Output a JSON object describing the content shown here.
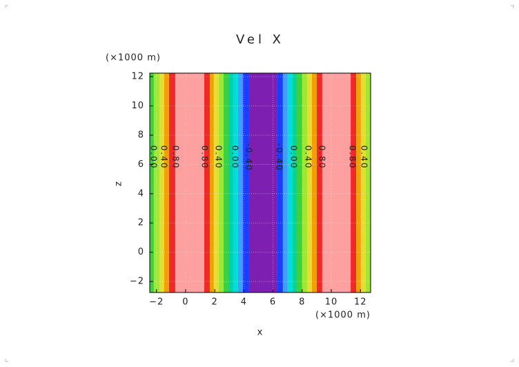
{
  "chart_data": {
    "type": "contour",
    "title": "Vel X",
    "x_label": "x",
    "y_label": "z",
    "x_unit": "(×1000 m)",
    "y_unit": "(×1000 m)",
    "xlim": [
      -2.46,
      12.7
    ],
    "ylim": [
      -2.75,
      12.24
    ],
    "xticks": [
      {
        "value": -2,
        "label": "−2"
      },
      0,
      2,
      4,
      6,
      8,
      10,
      12
    ],
    "yticks": [
      {
        "value": -2,
        "label": "−2"
      },
      0,
      2,
      4,
      6,
      8,
      10,
      12
    ],
    "grid": true,
    "bands": {
      "edges": [
        -2.46,
        -2.18,
        -1.8,
        -1.47,
        -1.14,
        -0.71,
        1.28,
        1.66,
        1.94,
        2.27,
        2.61,
        2.94,
        3.27,
        3.6,
        3.93,
        4.36,
        6.26,
        6.68,
        7.01,
        7.35,
        7.63,
        8.01,
        8.34,
        8.67,
        9.0,
        9.38,
        11.33,
        11.71,
        12.04,
        12.37,
        12.7
      ],
      "colors": [
        "#3cd23c",
        "#a0e632",
        "#e6dc32",
        "#f0a000",
        "#f02828",
        "#ffa0a0",
        "#f02828",
        "#f0a000",
        "#e6dc32",
        "#a0e632",
        "#3cd23c",
        "#00d2a0",
        "#00dcdc",
        "#3ca0ff",
        "#1e3cff",
        "#7d1fb0",
        "#1e3cff",
        "#3ca0ff",
        "#00dcdc",
        "#00d2a0",
        "#3cd23c",
        "#a0e632",
        "#e6dc32",
        "#f0a000",
        "#f02828",
        "#ffa0a0",
        "#f02828",
        "#f0a000",
        "#e6dc32",
        "#a0e632"
      ]
    },
    "contour_labels": {
      "x": [
        -2.23,
        -1.52,
        -0.71,
        1.28,
        2.23,
        3.36,
        4.31,
        6.4,
        7.39,
        8.39,
        9.34,
        11.42,
        12.23
      ],
      "labels": [
        "0.00",
        "0.40",
        "0.80",
        "0.80",
        "0.40",
        "0.00",
        "-0.40",
        "-0.40",
        "0.00",
        "0.40",
        "0.80",
        "0.80",
        "0.40"
      ]
    }
  }
}
